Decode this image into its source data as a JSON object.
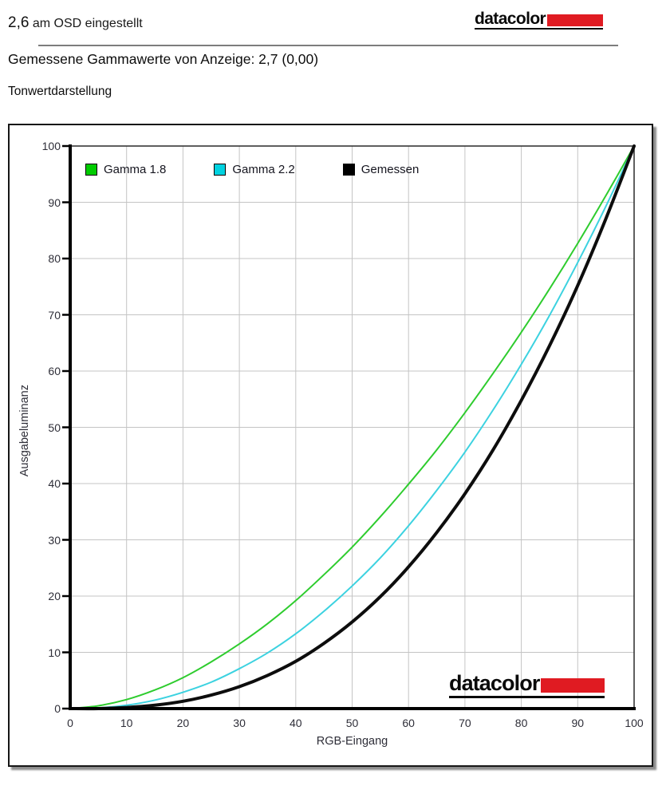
{
  "header": {
    "osd_value": "2,6",
    "osd_text": "am OSD eingestellt",
    "measured_line": "Gemessene Gammawerte von Anzeige: 2,7 (0,00)",
    "section_title": "Tonwertdarstellung"
  },
  "logo": {
    "text": "datacolor",
    "red": "#e01b22"
  },
  "chart_data": {
    "type": "line",
    "title": "Tonwertdarstellung",
    "xlabel": "RGB-Eingang",
    "ylabel": "Ausgabeluminanz",
    "xlim": [
      0,
      100
    ],
    "ylim": [
      0,
      100
    ],
    "x_ticks": [
      0,
      10,
      20,
      30,
      40,
      50,
      60,
      70,
      80,
      90,
      100
    ],
    "y_ticks": [
      0,
      10,
      20,
      30,
      40,
      50,
      60,
      70,
      80,
      90,
      100
    ],
    "grid": true,
    "grid_color": "#c4c4c4",
    "legend_position": "top-left-inside",
    "x": [
      0,
      5,
      10,
      15,
      20,
      25,
      30,
      35,
      40,
      45,
      50,
      55,
      60,
      65,
      70,
      75,
      80,
      85,
      90,
      95,
      100
    ],
    "series": [
      {
        "name": "Gamma 1.8",
        "color": "#2ecc2e",
        "swatch_color": "#00cc00",
        "line_width": 2,
        "values": [
          0,
          0.5,
          1.6,
          3.3,
          5.5,
          8.3,
          11.5,
          15.1,
          19.2,
          23.8,
          28.7,
          34.1,
          39.9,
          46.0,
          52.6,
          59.6,
          66.9,
          74.6,
          82.7,
          91.2,
          100
        ]
      },
      {
        "name": "Gamma 2.2",
        "color": "#3cd2e0",
        "swatch_color": "#00d2e0",
        "line_width": 2,
        "values": [
          0,
          0.1,
          0.6,
          1.5,
          2.9,
          4.7,
          7.1,
          9.9,
          13.3,
          17.3,
          21.8,
          26.8,
          32.5,
          38.8,
          45.6,
          53.1,
          61.2,
          69.9,
          79.3,
          89.3,
          100
        ]
      },
      {
        "name": "Gemessen",
        "color": "#0d0d0d",
        "swatch_color": "#000000",
        "line_width": 4,
        "values": [
          0,
          0.0,
          0.2,
          0.6,
          1.3,
          2.4,
          3.9,
          5.9,
          8.4,
          11.6,
          15.4,
          19.9,
          25.2,
          31.3,
          38.2,
          46.0,
          54.8,
          64.5,
          75.2,
          87.1,
          100
        ]
      }
    ]
  }
}
